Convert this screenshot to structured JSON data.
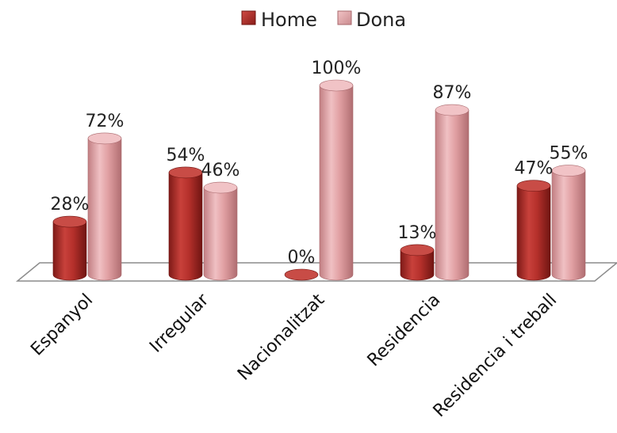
{
  "chart_data": {
    "type": "bar",
    "categories": [
      "Espanyol",
      "Irregular",
      "Nacionalitzat",
      "Residencia",
      "Residencia i treball"
    ],
    "series": [
      {
        "name": "Home",
        "values": [
          28,
          54,
          0,
          13,
          47
        ],
        "labels": [
          "28%",
          "54%",
          "0%",
          "13%",
          "47%"
        ],
        "color": "#b5302b"
      },
      {
        "name": "Dona",
        "values": [
          72,
          46,
          100,
          87,
          55
        ],
        "labels": [
          "72%",
          "46%",
          "100%",
          "87%",
          "55%"
        ],
        "color": "#e1a0a3"
      }
    ],
    "ylim": [
      0,
      100
    ],
    "title": "",
    "xlabel": "",
    "ylabel": "",
    "legend_position": "top-center",
    "grid": false,
    "style": "3d-cylinder"
  }
}
